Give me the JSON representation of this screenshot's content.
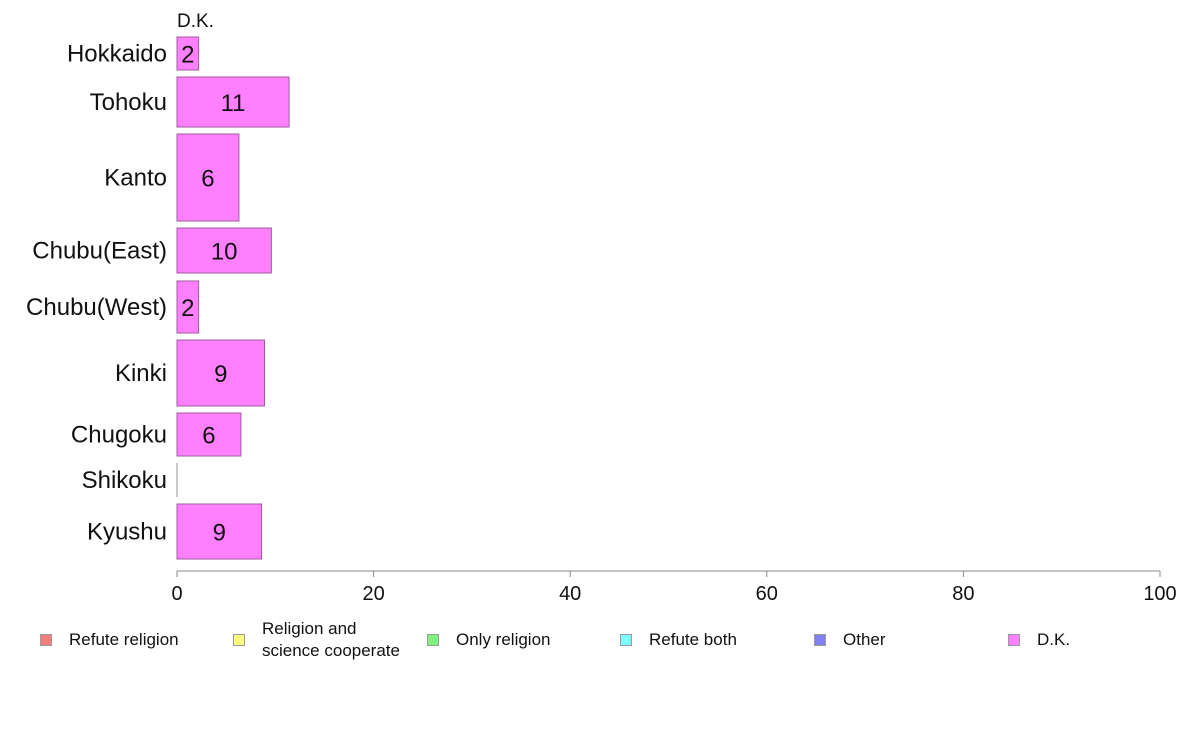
{
  "chart_data": {
    "type": "bar",
    "orientation": "horizontal",
    "stacked": true,
    "series_label_top": "D.K.",
    "categories": [
      "Hokkaido",
      "Tohoku",
      "Kanto",
      "Chubu(East)",
      "Chubu(West)",
      "Kinki",
      "Chugoku",
      "Shikoku",
      "Kyushu"
    ],
    "series": [
      {
        "name": "Refute religion",
        "color": "#f08080",
        "values": [
          0,
          0,
          0,
          0,
          0,
          0,
          0,
          0,
          0
        ]
      },
      {
        "name": "Religion and\nscience cooperate",
        "color": "#ffff80",
        "values": [
          0,
          0,
          0,
          0,
          0,
          0,
          0,
          0,
          0
        ]
      },
      {
        "name": "Only religion",
        "color": "#80f080",
        "values": [
          0,
          0,
          0,
          0,
          0,
          0,
          0,
          0,
          0
        ]
      },
      {
        "name": "Refute both",
        "color": "#80ffff",
        "values": [
          0,
          0,
          0,
          0,
          0,
          0,
          0,
          0,
          0
        ]
      },
      {
        "name": "Other",
        "color": "#8080f0",
        "values": [
          0,
          0,
          0,
          0,
          0,
          0,
          0,
          0,
          0
        ]
      },
      {
        "name": "D.K.",
        "color": "#ff80ff",
        "values": [
          2.2,
          11.4,
          6.3,
          9.6,
          2.2,
          8.9,
          6.5,
          0,
          8.6
        ]
      }
    ],
    "data_labels": [
      "2",
      "11",
      "6",
      "10",
      "2",
      "9",
      "6",
      "",
      "9"
    ],
    "xlim": [
      0,
      100
    ],
    "xticks": [
      0,
      20,
      40,
      60,
      80,
      100
    ],
    "xlabel": "",
    "ylabel": "",
    "title": "",
    "grid": false,
    "legend_position": "bottom"
  }
}
